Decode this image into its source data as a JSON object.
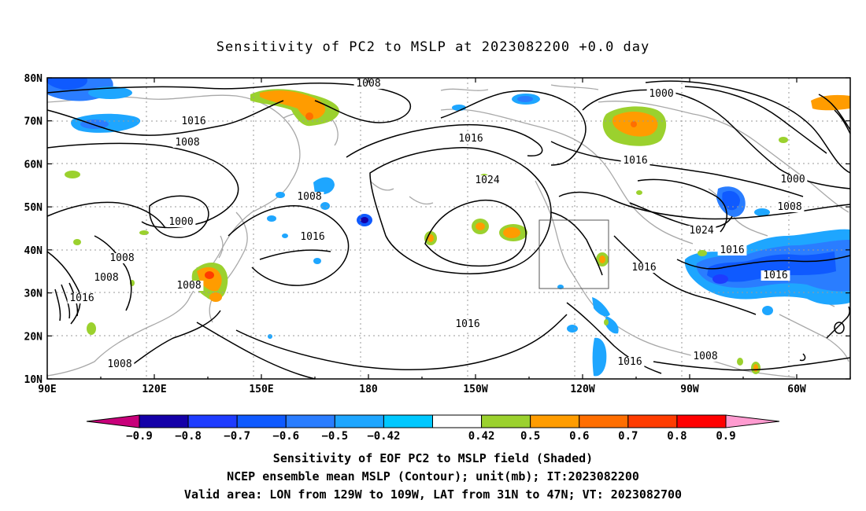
{
  "title": "Sensitivity of PC2 to MSLP at 2023082200 +0.0 day",
  "map": {
    "lon_labels": [
      "90E",
      "120E",
      "150E",
      "180",
      "150W",
      "120W",
      "90W",
      "60W"
    ],
    "lat_labels": [
      "80N",
      "70N",
      "60N",
      "50N",
      "40N",
      "30N",
      "20N",
      "10N"
    ],
    "grid": true,
    "box": {
      "lon_from": "129W",
      "lon_to": "109W",
      "lat_from": "31N",
      "lat_to": "47N"
    },
    "contour_labels": [
      "1008",
      "1016",
      "1008",
      "1000",
      "1008",
      "1016",
      "1008",
      "1008",
      "1008",
      "1016",
      "1008",
      "1016",
      "1024",
      "1016",
      "1016",
      "1016",
      "1000",
      "1016",
      "1000",
      "1008",
      "1024",
      "1016",
      "1016",
      "1008",
      "1008"
    ]
  },
  "colorbar": {
    "labels": [
      "-0.9",
      "-0.8",
      "-0.7",
      "-0.6",
      "-0.5",
      "-0.42",
      "0.42",
      "0.5",
      "0.6",
      "0.7",
      "0.8",
      "0.9"
    ],
    "colors": [
      "#1400a8",
      "#1e3cff",
      "#0f5aff",
      "#2a7dff",
      "#1ea6ff",
      "#00c8ff",
      "#ffffff",
      "#9bd12e",
      "#ff9c00",
      "#ff6e00",
      "#ff3c00",
      "#ff0000"
    ],
    "end_low_color": "#c8007a",
    "end_high_color": "#ff9bd0"
  },
  "caption": {
    "line1": "Sensitivity of EOF PC2 to MSLP field (Shaded)",
    "line2": "NCEP ensemble mean MSLP (Contour); unit(mb); IT:2023082200",
    "line3": "Valid area: LON from 129W to 109W, LAT from 31N to 47N; VT: 2023082700"
  }
}
